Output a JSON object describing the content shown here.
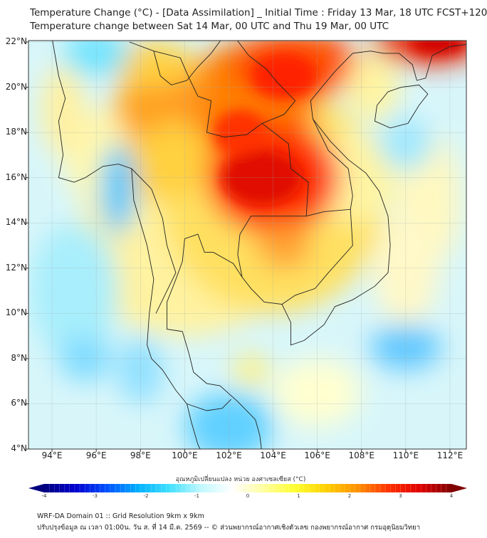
{
  "header": {
    "title": "Temperature Change (°C) - [Data Assimilation] _ Initial Time : Friday 13 Mar, 18 UTC FCST+120",
    "subtitle": "Temperature change between Sat 14 Mar, 00 UTC and Thu 19 Mar, 00 UTC"
  },
  "map": {
    "lat_labels": [
      "22°N",
      "20°N",
      "18°N",
      "16°N",
      "14°N",
      "12°N",
      "10°N",
      "8°N",
      "6°N",
      "4°N"
    ],
    "lat_values": [
      22,
      20,
      18,
      16,
      14,
      12,
      10,
      8,
      6,
      4
    ],
    "lon_labels": [
      "94°E",
      "96°E",
      "98°E",
      "100°E",
      "102°E",
      "104°E",
      "106°E",
      "108°E",
      "110°E",
      "112°E"
    ],
    "lon_values": [
      94,
      96,
      98,
      100,
      102,
      104,
      106,
      108,
      110,
      112
    ],
    "extent": {
      "lon": [
        93,
        112.75
      ],
      "lat": [
        4,
        22
      ]
    }
  },
  "colorbar": {
    "label": "อุณหภูมิเปลี่ยนแปลง หน่วย องศาเซลเซียส (°C)",
    "ticks": [
      "-4",
      "-3",
      "-2",
      "-1",
      "0",
      "1",
      "2",
      "3",
      "4"
    ],
    "range": [
      -4,
      4
    ],
    "colors": [
      "#00007f",
      "#0000d0",
      "#0050ff",
      "#00b0ff",
      "#40e0ff",
      "#c0f8ff",
      "#ffffff",
      "#ffffa0",
      "#ffff30",
      "#ffd000",
      "#ff9000",
      "#ff3000",
      "#e00000",
      "#800000"
    ]
  },
  "footer": {
    "line1": "WRF-DA Domain 01 :: Grid Resolution 9km x 9km",
    "line2": "ปรับปรุงข้อมูล ณ เวลา 01:00น. วัน ส. ที่ 14 มี.ค. 2569 -- © ส่วนพยากรณ์อากาศเชิงตัวเลข กองพยากรณ์อากาศ กรมอุตุนิยมวิทยา"
  }
}
